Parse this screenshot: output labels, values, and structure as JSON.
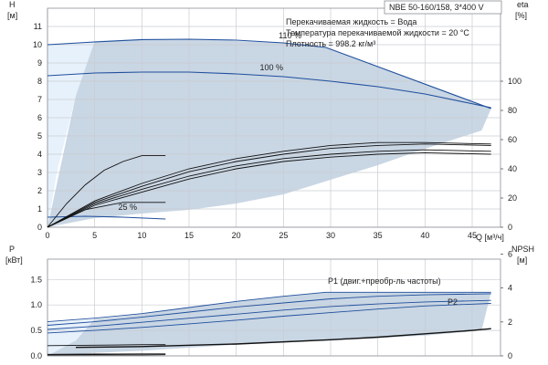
{
  "title": "NBE 50-160/158, 3*400 V",
  "notes": [
    "Перекачиваемая жидкость = Вода",
    "Температура перекачиваемой жидкости = 20 °C",
    "Плотность = 998.2 кг/м³"
  ],
  "chart_data": [
    {
      "type": "line",
      "name": "head",
      "xlabel": "Q [м³/ч]",
      "ylabel_left": "H",
      "ylabel_left_unit": "[м]",
      "ylabel_right": "eta",
      "ylabel_right_unit": "[%]",
      "xlim": [
        0,
        48
      ],
      "ylim_left": [
        0,
        12
      ],
      "ylim_right": [
        0,
        150
      ],
      "x_ticks": [
        0,
        5,
        10,
        15,
        20,
        25,
        30,
        35,
        40,
        45
      ],
      "y_ticks_left": [
        0,
        1,
        2,
        3,
        4,
        5,
        6,
        7,
        8,
        9,
        10,
        11
      ],
      "y_ticks_right": [
        0,
        20,
        40,
        60,
        80,
        100
      ],
      "grid": true,
      "region_light": [
        [
          0,
          0
        ],
        [
          0,
          10
        ],
        [
          5,
          10.2
        ],
        [
          3,
          7.2
        ],
        [
          1,
          3
        ],
        [
          0,
          0
        ]
      ],
      "region_dark": [
        [
          0,
          0
        ],
        [
          3,
          7.2
        ],
        [
          5,
          10.2
        ],
        [
          10,
          10.3
        ],
        [
          15,
          10.3
        ],
        [
          20,
          10.2
        ],
        [
          25,
          10.1
        ],
        [
          29.5,
          9.85
        ],
        [
          47,
          6.5
        ],
        [
          46,
          5.3
        ],
        [
          40,
          4.3
        ],
        [
          35,
          3.4
        ],
        [
          30,
          2.6
        ],
        [
          25,
          1.8
        ],
        [
          20,
          1.3
        ],
        [
          15,
          0.95
        ],
        [
          10,
          0.75
        ],
        [
          5,
          0.5
        ],
        [
          0,
          0
        ]
      ],
      "series": [
        {
          "name": "110 %",
          "axis": "left",
          "points": [
            [
              0,
              10
            ],
            [
              5,
              10.15
            ],
            [
              10,
              10.28
            ],
            [
              15,
              10.3
            ],
            [
              20,
              10.25
            ],
            [
              25,
              10.1
            ],
            [
              29.5,
              9.85
            ],
            [
              47,
              6.5
            ]
          ]
        },
        {
          "name": "100 %",
          "axis": "left",
          "points": [
            [
              0,
              8.3
            ],
            [
              5,
              8.45
            ],
            [
              10,
              8.5
            ],
            [
              15,
              8.5
            ],
            [
              20,
              8.4
            ],
            [
              25,
              8.25
            ],
            [
              30,
              8.0
            ],
            [
              35,
              7.7
            ],
            [
              40,
              7.3
            ],
            [
              47,
              6.55
            ]
          ]
        },
        {
          "name": "25 %",
          "axis": "left",
          "points": [
            [
              0,
              0.55
            ],
            [
              4,
              0.6
            ],
            [
              8,
              0.55
            ],
            [
              12.5,
              0.45
            ]
          ]
        },
        {
          "name": "",
          "axis": "right",
          "points": [
            [
              0,
              0
            ],
            [
              2,
              16
            ],
            [
              4,
              29
            ],
            [
              6,
              39
            ],
            [
              8,
              45
            ],
            [
              10,
              49
            ],
            [
              12.5,
              49
            ]
          ]
        },
        {
          "name": "",
          "axis": "right",
          "points": [
            [
              0,
              0
            ],
            [
              5,
              18
            ],
            [
              10,
              30
            ],
            [
              15,
              40
            ],
            [
              20,
              47
            ],
            [
              25,
              52
            ],
            [
              30,
              56
            ],
            [
              35,
              58
            ],
            [
              40,
              58
            ],
            [
              47,
              57
            ]
          ]
        },
        {
          "name": "",
          "axis": "right",
          "points": [
            [
              0,
              0
            ],
            [
              5,
              17
            ],
            [
              10,
              28
            ],
            [
              15,
              38
            ],
            [
              20,
              45
            ],
            [
              25,
              50
            ],
            [
              30,
              54
            ],
            [
              35,
              56
            ],
            [
              40,
              57
            ],
            [
              47,
              56
            ]
          ]
        },
        {
          "name": "",
          "axis": "right",
          "points": [
            [
              0,
              0
            ],
            [
              5,
              16
            ],
            [
              10,
              26
            ],
            [
              15,
              35
            ],
            [
              20,
              42
            ],
            [
              25,
              47
            ],
            [
              30,
              50
            ],
            [
              35,
              52
            ],
            [
              40,
              53
            ],
            [
              47,
              52
            ]
          ]
        },
        {
          "name": "",
          "axis": "right",
          "points": [
            [
              0,
              0
            ],
            [
              5,
              15
            ],
            [
              10,
              24
            ],
            [
              15,
              33
            ],
            [
              20,
              40
            ],
            [
              25,
              45
            ],
            [
              30,
              48
            ],
            [
              35,
              50
            ],
            [
              40,
              51
            ],
            [
              47,
              50
            ]
          ]
        },
        {
          "name": "",
          "axis": "right",
          "points": [
            [
              0,
              0
            ],
            [
              4,
              12
            ],
            [
              8,
              17
            ],
            [
              12.5,
              17
            ]
          ]
        }
      ],
      "curve_labels": [
        {
          "text": "110 %",
          "x": 24.5,
          "y": 10.35
        },
        {
          "text": "100 %",
          "x": 22.5,
          "y": 8.6
        },
        {
          "text": "25 %",
          "x": 7.5,
          "y": 0.95
        }
      ]
    },
    {
      "type": "line",
      "name": "power",
      "xlabel": "",
      "ylabel_left": "P",
      "ylabel_left_unit": "[кВт]",
      "ylabel_right": "NPSH",
      "ylabel_right_unit": "[м]",
      "xlim": [
        0,
        48
      ],
      "ylim_left": [
        0,
        1.9
      ],
      "ylim_right": [
        0,
        5.7
      ],
      "y_ticks_left": [
        0.0,
        0.5,
        1.0,
        1.5
      ],
      "y_ticks_left_labels": [
        "0.0",
        "0.5",
        "1.0",
        "1.5"
      ],
      "y_ticks_right": [
        0,
        2,
        4,
        6
      ],
      "grid": true,
      "region_light": [
        [
          0,
          0
        ],
        [
          0,
          0.65
        ],
        [
          5,
          0.72
        ],
        [
          3,
          0.3
        ],
        [
          1,
          0.05
        ],
        [
          0,
          0
        ]
      ],
      "region_dark": [
        [
          0,
          0
        ],
        [
          3,
          0.3
        ],
        [
          5,
          0.72
        ],
        [
          10,
          0.82
        ],
        [
          15,
          0.95
        ],
        [
          20,
          1.07
        ],
        [
          25,
          1.17
        ],
        [
          29.5,
          1.25
        ],
        [
          47,
          1.25
        ],
        [
          46,
          0.5
        ],
        [
          40,
          0.4
        ],
        [
          30,
          0.3
        ],
        [
          20,
          0.22
        ],
        [
          10,
          0.1
        ],
        [
          5,
          0.06
        ],
        [
          0,
          0
        ]
      ],
      "p1_label": "P1 (двиг.+преобр-ль частоты)",
      "p2_label": "P2",
      "series": [
        {
          "name": "P1",
          "axis": "left",
          "points": [
            [
              0,
              0.67
            ],
            [
              5,
              0.74
            ],
            [
              10,
              0.83
            ],
            [
              15,
              0.95
            ],
            [
              20,
              1.07
            ],
            [
              25,
              1.17
            ],
            [
              29.5,
              1.25
            ],
            [
              47,
              1.25
            ]
          ]
        },
        {
          "name": "",
          "axis": "left",
          "points": [
            [
              0,
              0.6
            ],
            [
              5,
              0.67
            ],
            [
              10,
              0.76
            ],
            [
              15,
              0.86
            ],
            [
              20,
              0.96
            ],
            [
              25,
              1.04
            ],
            [
              30,
              1.12
            ],
            [
              35,
              1.17
            ],
            [
              40,
              1.2
            ],
            [
              47,
              1.22
            ]
          ]
        },
        {
          "name": "",
          "axis": "left",
          "points": [
            [
              0,
              0.52
            ],
            [
              5,
              0.58
            ],
            [
              10,
              0.66
            ],
            [
              15,
              0.74
            ],
            [
              20,
              0.82
            ],
            [
              25,
              0.9
            ],
            [
              30,
              0.97
            ],
            [
              35,
              1.02
            ],
            [
              40,
              1.06
            ],
            [
              47,
              1.09
            ]
          ]
        },
        {
          "name": "P2",
          "axis": "left",
          "points": [
            [
              0,
              0.45
            ],
            [
              5,
              0.5
            ],
            [
              10,
              0.56
            ],
            [
              15,
              0.63
            ],
            [
              20,
              0.7
            ],
            [
              25,
              0.78
            ],
            [
              30,
              0.85
            ],
            [
              35,
              0.92
            ],
            [
              40,
              0.98
            ],
            [
              47,
              1.03
            ]
          ]
        },
        {
          "name": "",
          "axis": "left",
          "points": [
            [
              0,
              0.2
            ],
            [
              5,
              0.21
            ],
            [
              10,
              0.22
            ],
            [
              12.5,
              0.22
            ]
          ]
        },
        {
          "name": "",
          "axis": "left",
          "points": [
            [
              0,
              0.03
            ],
            [
              5,
              0.035
            ],
            [
              10,
              0.04
            ],
            [
              12.5,
              0.04
            ]
          ]
        },
        {
          "name": "NPSH",
          "axis": "right",
          "points": [
            [
              3,
              0.5
            ],
            [
              10,
              0.55
            ],
            [
              20,
              0.7
            ],
            [
              30,
              0.95
            ],
            [
              35,
              1.1
            ],
            [
              40,
              1.3
            ],
            [
              45,
              1.5
            ],
            [
              47,
              1.6
            ]
          ]
        },
        {
          "name": "",
          "axis": "right",
          "points": [
            [
              0,
              0.05
            ],
            [
              5,
              0.06
            ],
            [
              10,
              0.06
            ],
            [
              12.5,
              0.07
            ]
          ]
        }
      ]
    }
  ]
}
